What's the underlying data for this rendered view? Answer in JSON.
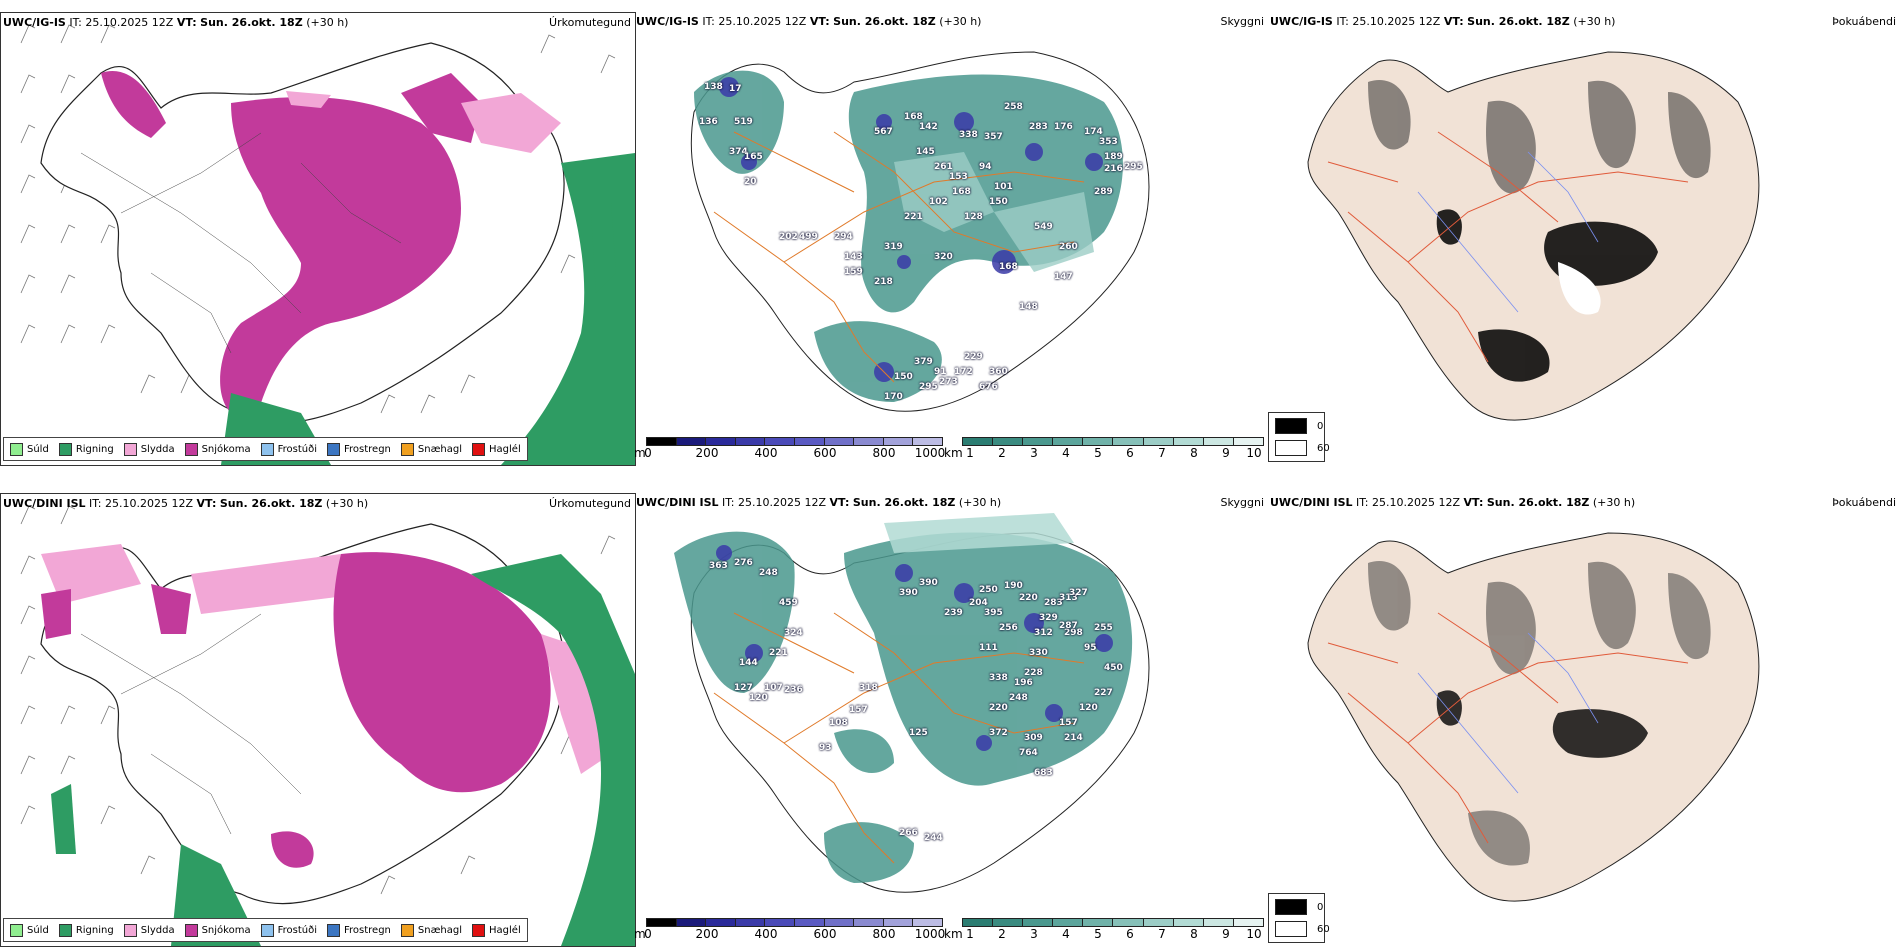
{
  "rows": [
    {
      "model": "UWC/IG-IS",
      "it_label": "IT:",
      "it_time": "25.10.2025 12Z",
      "vt_label": "VT:",
      "vt_time": "Sun. 26.okt. 18Z",
      "lead": "(+30 h)",
      "titles": {
        "precip": "Úrkomutegund",
        "vis": "Skyggni",
        "fog": "Þokuábendi"
      }
    },
    {
      "model": "UWC/DINI ISL",
      "it_label": "IT:",
      "it_time": "25.10.2025 12Z",
      "vt_label": "VT:",
      "vt_time": "Sun. 26.okt. 18Z",
      "lead": "(+30 h)",
      "titles": {
        "precip": "Úrkomutegund",
        "vis": "Skyggni",
        "fog": "Þokuábendi"
      }
    }
  ],
  "precip_legend": [
    {
      "label": "Súld",
      "color": "#90ee90"
    },
    {
      "label": "Rigning",
      "color": "#2e9c63"
    },
    {
      "label": "Slydda",
      "color": "#f2a7d6"
    },
    {
      "label": "Snjókoma",
      "color": "#c23a9b"
    },
    {
      "label": "Frostúði",
      "color": "#8ec2ee"
    },
    {
      "label": "Frostregn",
      "color": "#3c76c2"
    },
    {
      "label": "Snæhagl",
      "color": "#f0a020"
    },
    {
      "label": "Haglél",
      "color": "#e01010"
    }
  ],
  "height_scale": {
    "unit": "m",
    "ticks": [
      "0",
      "200",
      "400",
      "600",
      "800",
      "1000"
    ],
    "colors": [
      "#000000",
      "#1a1a7a",
      "#2a2a9a",
      "#3a3aa8",
      "#4a4ab8",
      "#5a5ac2",
      "#7070c8",
      "#8a8ad0",
      "#a2a2da",
      "#bcbce4"
    ]
  },
  "vis_scale": {
    "unit": "km",
    "ticks": [
      "1",
      "2",
      "3",
      "4",
      "5",
      "6",
      "7",
      "8",
      "9",
      "10"
    ],
    "colors": [
      "#2b7d72",
      "#3a8b80",
      "#4a988e",
      "#5ca59c",
      "#70b2a9",
      "#86c0b8",
      "#9ccdc6",
      "#b2dbd4",
      "#cce7e2",
      "#e6f3f1"
    ]
  },
  "fog_legend": [
    {
      "label": "0",
      "color": "#000000"
    },
    {
      "label": "60",
      "color": "#ffffff"
    }
  ],
  "cloud_labels": [
    [
      "138",
      "17",
      "519",
      "136",
      "374",
      "165",
      "20",
      "567",
      "168",
      "142",
      "145",
      "338",
      "357",
      "258",
      "283",
      "176",
      "174",
      "353",
      "189",
      "216",
      "289",
      "295",
      "94",
      "101",
      "261",
      "153",
      "168",
      "102",
      "221",
      "128",
      "150",
      "549",
      "260",
      "202",
      "499",
      "294",
      "143",
      "319",
      "320",
      "168",
      "147",
      "148",
      "159",
      "218",
      "229",
      "379",
      "91",
      "172",
      "360",
      "273",
      "150",
      "295",
      "676",
      "170"
    ],
    [
      "363",
      "276",
      "248",
      "459",
      "324",
      "221",
      "144",
      "127",
      "120",
      "107",
      "236",
      "318",
      "157",
      "108",
      "93",
      "390",
      "390",
      "239",
      "204",
      "250",
      "190",
      "220",
      "283",
      "313",
      "327",
      "395",
      "256",
      "329",
      "312",
      "298",
      "287",
      "255",
      "95",
      "450",
      "330",
      "228",
      "196",
      "338",
      "248",
      "220",
      "120",
      "227",
      "111",
      "157",
      "214",
      "309",
      "764",
      "683",
      "372",
      "125",
      "266",
      "244"
    ]
  ]
}
